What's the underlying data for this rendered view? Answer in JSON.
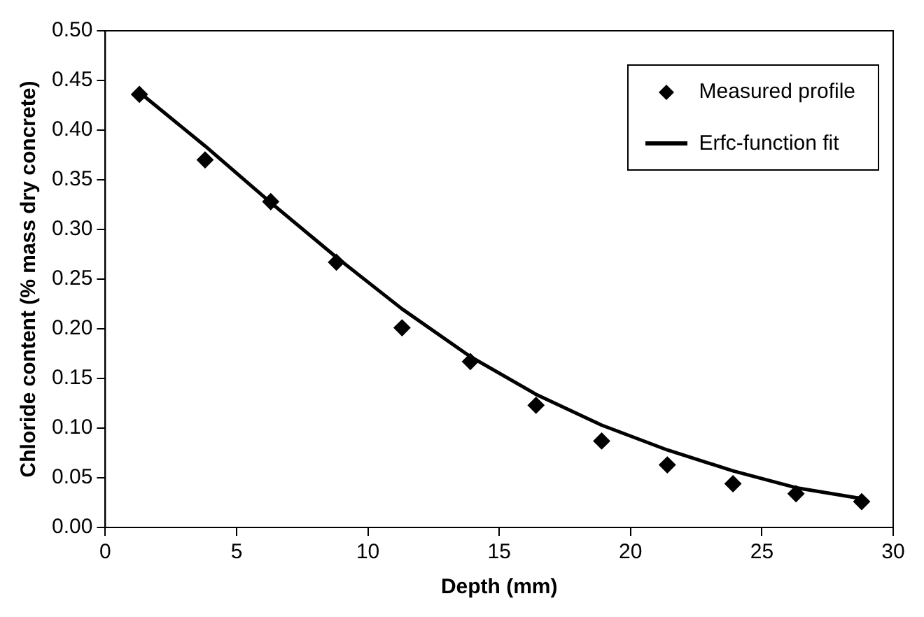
{
  "chart_data": {
    "type": "scatter",
    "xlabel": "Depth (mm)",
    "ylabel": "Chloride content (% mass dry concrete)",
    "xlim": [
      0,
      30
    ],
    "xticks": [
      0,
      5,
      10,
      15,
      20,
      25,
      30
    ],
    "ylim": [
      0,
      0.5
    ],
    "yticks": [
      {
        "value": 0,
        "label": "0.00"
      },
      0.05,
      {
        "value": 0.1,
        "label": "0.10"
      },
      0.15,
      {
        "value": 0.2,
        "label": "0.20"
      },
      0.25,
      {
        "value": 0.3,
        "label": "0.30"
      },
      0.35,
      {
        "value": 0.4,
        "label": "0.40"
      },
      0.45,
      {
        "value": 0.5,
        "label": "0.50"
      }
    ],
    "grid": false,
    "legend": "top right",
    "series": [
      {
        "name": "Measured profile",
        "marker": "diamond",
        "color": "#000000",
        "x": [
          1.3,
          3.8,
          6.3,
          8.8,
          11.3,
          13.9,
          16.4,
          18.9,
          21.4,
          23.9,
          26.3,
          28.8
        ],
        "values": [
          0.436,
          0.37,
          0.328,
          0.267,
          0.201,
          0.167,
          0.123,
          0.087,
          0.063,
          0.044,
          0.034,
          0.026
        ]
      },
      {
        "name": "Erfc-function fit",
        "type": "line",
        "marker": "none",
        "line_style": "solid",
        "color": "#000000",
        "x": [
          1.3,
          3.8,
          6.3,
          8.8,
          11.3,
          13.9,
          16.4,
          18.9,
          21.4,
          23.9,
          26.3,
          28.8
        ],
        "values": [
          0.438,
          0.384,
          0.327,
          0.272,
          0.22,
          0.172,
          0.134,
          0.103,
          0.078,
          0.057,
          0.04,
          0.029
        ]
      }
    ]
  }
}
